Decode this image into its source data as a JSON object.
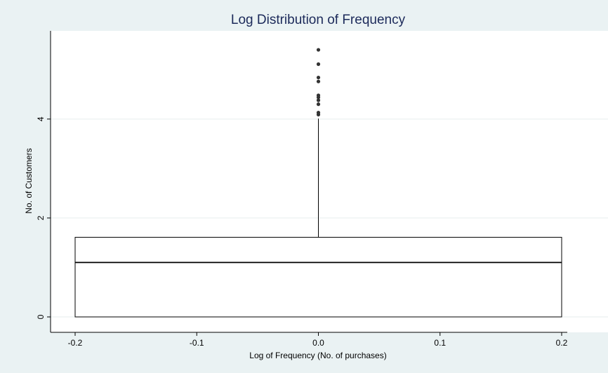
{
  "chart_data": {
    "type": "box",
    "title": "Log Distribution of Frequency",
    "xlabel": "Log of Frequency (No. of purchases)",
    "ylabel": "No. of Customers",
    "x_ticks": [
      "-0.2",
      "-0.1",
      "0.0",
      "0.1",
      "0.2"
    ],
    "y_ticks": [
      "0",
      "2",
      "4"
    ],
    "xlim": [
      -0.2,
      0.2
    ],
    "ylim": [
      0,
      5.5
    ],
    "grid": true,
    "box": {
      "x_center": 0.0,
      "x_halfwidth": 0.2,
      "whisker_low": 0.0,
      "q1": 0.0,
      "median": 1.1,
      "q3": 1.61,
      "whisker_high": 4.01
    },
    "outliers": [
      4.09,
      4.13,
      4.3,
      4.38,
      4.44,
      4.48,
      4.76,
      4.84,
      5.11,
      5.4
    ]
  },
  "colors": {
    "page_background": "#eaf2f3",
    "plot_background": "#ffffff",
    "title": "#1c2a5a",
    "grid": "#e6eded",
    "box_line": "#000000",
    "outlier": "#333333"
  }
}
